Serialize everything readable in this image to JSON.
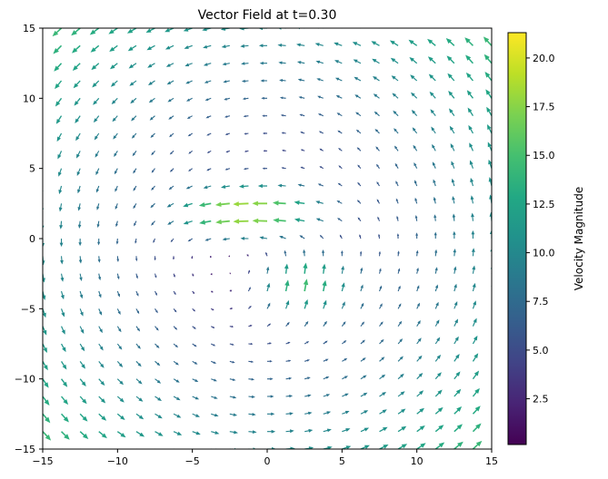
{
  "figure": {
    "background": "#ffffff"
  },
  "chart_data": {
    "type": "quiver",
    "title": "Vector Field at t=0.30",
    "time": 0.3,
    "xlabel": "",
    "ylabel": "",
    "x_range": [
      -15,
      15
    ],
    "y_range": [
      -15,
      15
    ],
    "grid_points": 25,
    "x_ticks": [
      {
        "v": -15,
        "label": "−15"
      },
      {
        "v": -10,
        "label": "−10"
      },
      {
        "v": -5,
        "label": "−5"
      },
      {
        "v": 0,
        "label": "0"
      },
      {
        "v": 5,
        "label": "5"
      },
      {
        "v": 10,
        "label": "10"
      },
      {
        "v": 15,
        "label": "15"
      }
    ],
    "y_ticks": [
      {
        "v": -15,
        "label": "−15"
      },
      {
        "v": -10,
        "label": "−10"
      },
      {
        "v": -5,
        "label": "−5"
      },
      {
        "v": 0,
        "label": "0"
      },
      {
        "v": 5,
        "label": "5"
      },
      {
        "v": 10,
        "label": "10"
      },
      {
        "v": 15,
        "label": "15"
      }
    ],
    "field": {
      "description": "counter-clockwise vortex with a strong leftward jet near (-1, 1.8) and an upward jet near (2, -3.5); arrows colored by speed (viridis)",
      "u": "-0.7*y - 18*Math.exp(-(((x+1)*(x+1))/28 + ((y-1.8)*(y-1.8))/5))",
      "v": "0.7*x + 13*Math.exp(-(((x-2)*(x-2))/14 + ((y+3.5)*(y+3.5))/7))"
    },
    "colorbar": {
      "label": "Velocity Magnitude",
      "vmin": 0.15,
      "vmax": 21.3,
      "ticks": [
        {
          "v": 2.5,
          "label": "2.5"
        },
        {
          "v": 5.0,
          "label": "5.0"
        },
        {
          "v": 7.5,
          "label": "7.5"
        },
        {
          "v": 10.0,
          "label": "10.0"
        },
        {
          "v": 12.5,
          "label": "12.5"
        },
        {
          "v": 15.0,
          "label": "15.0"
        },
        {
          "v": 17.5,
          "label": "17.5"
        },
        {
          "v": 20.0,
          "label": "20.0"
        }
      ]
    },
    "colormap": {
      "name": "viridis",
      "stops": [
        [
          0.0,
          "#440154"
        ],
        [
          0.1,
          "#482475"
        ],
        [
          0.2,
          "#414487"
        ],
        [
          0.3,
          "#355f8d"
        ],
        [
          0.4,
          "#2a788e"
        ],
        [
          0.5,
          "#21918c"
        ],
        [
          0.6,
          "#22a884"
        ],
        [
          0.7,
          "#44bf70"
        ],
        [
          0.8,
          "#7ad151"
        ],
        [
          0.9,
          "#bddf26"
        ],
        [
          1.0,
          "#fde725"
        ]
      ]
    }
  }
}
